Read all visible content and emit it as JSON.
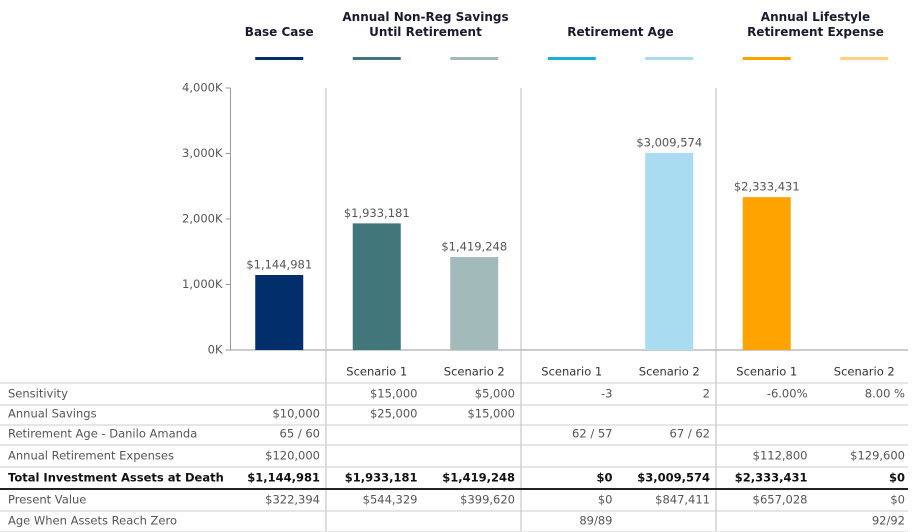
{
  "chart_data": {
    "type": "bar",
    "groups": [
      "Base Case",
      "Annual Non-Reg Savings Until Retirement",
      "Retirement Age",
      "Annual Lifestyle Retirement Expense"
    ],
    "categories": [
      null,
      "Scenario 1",
      "Scenario 2",
      "Scenario 1",
      "Scenario 2",
      "Scenario 1",
      "Scenario 2"
    ],
    "colors": [
      "#002f6c",
      "#41777a",
      "#a2bab9",
      "#1aafd6",
      "#a9dcf1",
      "#ffa300",
      "#fdd287"
    ],
    "values": [
      1144981,
      1933181,
      1419248,
      0,
      3009574,
      2333431,
      0
    ],
    "value_labels": [
      "$1,144,981",
      "$1,933,181",
      "$1,419,248",
      null,
      "$3,009,574",
      "$2,333,431",
      null
    ],
    "ylim": [
      0,
      4000000
    ],
    "yticks": [
      {
        "value": 0,
        "label": "0K"
      },
      {
        "value": 1000000,
        "label": "1,000K"
      },
      {
        "value": 2000000,
        "label": "2,000K"
      },
      {
        "value": 3000000,
        "label": "3,000K"
      },
      {
        "value": 4000000,
        "label": "4,000K"
      }
    ]
  },
  "table": {
    "rows": [
      {
        "label": "Sensitivity",
        "cells": [
          null,
          "$15,000",
          "$5,000",
          "-3",
          "2",
          "-6.00%",
          "8.00 %"
        ]
      },
      {
        "label": "Annual Savings",
        "cells": [
          "$10,000",
          "$25,000",
          "$15,000",
          null,
          null,
          null,
          null
        ]
      },
      {
        "label": "Retirement Age - Danilo Amanda",
        "cells": [
          "65 / 60",
          null,
          null,
          "62 / 57",
          "67 / 62",
          null,
          null
        ]
      },
      {
        "label": "Annual Retirement Expenses",
        "cells": [
          "$120,000",
          null,
          null,
          null,
          null,
          "$112,800",
          "$129,600"
        ]
      },
      {
        "label": "Total Investment Assets at Death",
        "cells": [
          "$1,144,981",
          "$1,933,181",
          "$1,419,248",
          "$0",
          "$3,009,574",
          "$2,333,431",
          "$0"
        ]
      },
      {
        "label": "Present Value",
        "cells": [
          "$322,394",
          "$544,329",
          "$399,620",
          "$0",
          "$847,411",
          "$657,028",
          "$0"
        ]
      },
      {
        "label": "Age When Assets Reach Zero",
        "cells": [
          null,
          null,
          null,
          "89/89",
          null,
          null,
          "92/92"
        ]
      }
    ]
  }
}
